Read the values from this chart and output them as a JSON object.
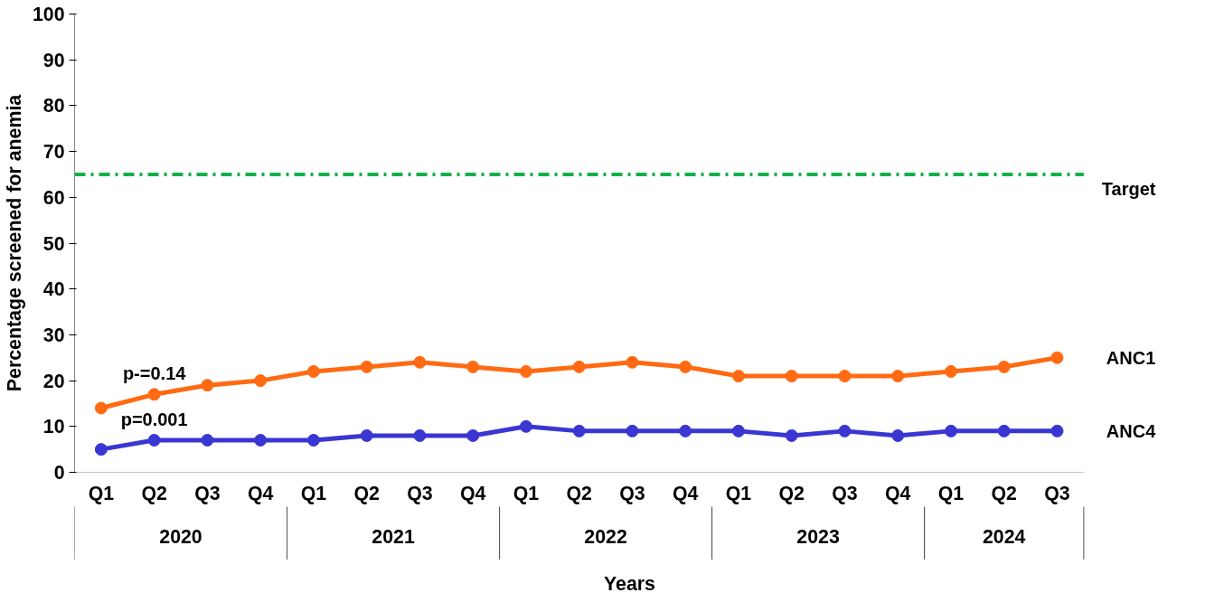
{
  "chart_data": {
    "type": "line",
    "xlabel": "Years",
    "ylabel": "Percentage screened for anemia",
    "categories": [
      "Q1",
      "Q2",
      "Q3",
      "Q4",
      "Q1",
      "Q2",
      "Q3",
      "Q4",
      "Q1",
      "Q2",
      "Q3",
      "Q4",
      "Q1",
      "Q2",
      "Q3",
      "Q4",
      "Q1",
      "Q2",
      "Q3"
    ],
    "series": [
      {
        "name": "ANC1",
        "color": "#ff6a13",
        "values": [
          14,
          17,
          19,
          20,
          22,
          23,
          24,
          23,
          22,
          23,
          24,
          23,
          21,
          21,
          21,
          21,
          22,
          23,
          25
        ]
      },
      {
        "name": "ANC4",
        "color": "#3a36d2",
        "values": [
          5,
          7,
          7,
          7,
          7,
          8,
          8,
          8,
          10,
          9,
          9,
          9,
          9,
          8,
          9,
          8,
          9,
          9,
          9
        ]
      }
    ],
    "ref_lines": [
      {
        "axis": "y",
        "value": 65,
        "label": "Target",
        "color": "#12b04a",
        "line_style": "dashdot"
      }
    ],
    "annotations": [
      "p-=0.14",
      "p=0.001",
      "2020",
      "2021",
      "2022",
      "2023",
      "2024"
    ],
    "ylim": [
      0,
      100
    ],
    "yticks": [
      0,
      10,
      20,
      30,
      40,
      50,
      60,
      70,
      80,
      90,
      100
    ],
    "grid": false,
    "marker": "circle",
    "line_style": "solid"
  }
}
